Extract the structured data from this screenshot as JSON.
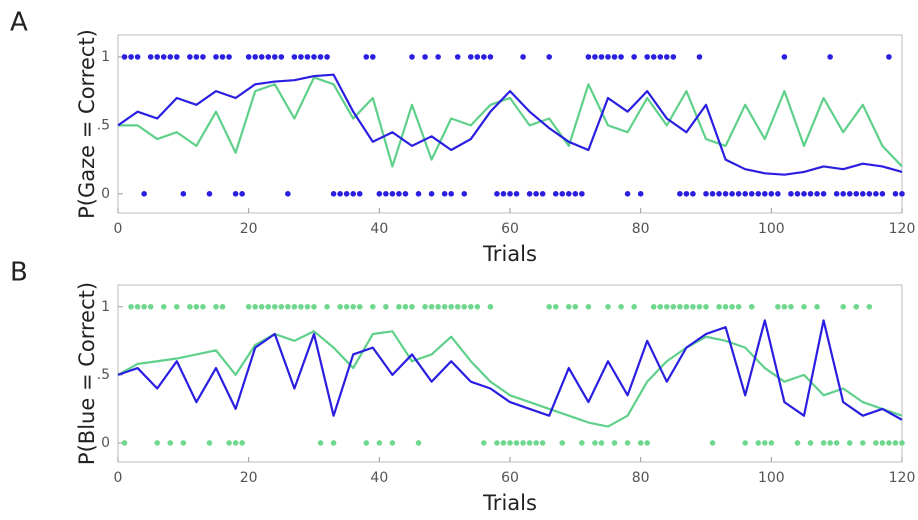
{
  "chart_data": [
    {
      "type": "line",
      "panel": "A",
      "ylabel": "P(Gaze = Correct)",
      "xlabel": "Trials",
      "xlim": [
        0,
        120
      ],
      "xticks": [
        0,
        20,
        40,
        60,
        80,
        100,
        120
      ],
      "ylim": [
        -0.14,
        1.16
      ],
      "yticks": [
        0,
        {
          "value": 0.5,
          "label": ".5"
        },
        1
      ],
      "x": [
        0,
        3,
        6,
        9,
        12,
        15,
        18,
        21,
        24,
        27,
        30,
        33,
        36,
        39,
        42,
        45,
        48,
        51,
        54,
        57,
        60,
        63,
        66,
        69,
        72,
        75,
        78,
        81,
        84,
        87,
        90,
        93,
        96,
        99,
        102,
        105,
        108,
        111,
        114,
        117,
        120
      ],
      "series": [
        {
          "color": "#5fd08a",
          "values": [
            0.5,
            0.5,
            0.4,
            0.45,
            0.35,
            0.6,
            0.3,
            0.75,
            0.8,
            0.55,
            0.85,
            0.8,
            0.55,
            0.7,
            0.2,
            0.65,
            0.25,
            0.55,
            0.5,
            0.65,
            0.7,
            0.5,
            0.55,
            0.35,
            0.8,
            0.5,
            0.45,
            0.7,
            0.5,
            0.75,
            0.4,
            0.35,
            0.65,
            0.4,
            0.75,
            0.35,
            0.7,
            0.45,
            0.65,
            0.35,
            0.2
          ]
        },
        {
          "color": "#2a1ee0",
          "values": [
            0.5,
            0.6,
            0.55,
            0.7,
            0.65,
            0.75,
            0.7,
            0.8,
            0.82,
            0.83,
            0.86,
            0.87,
            0.6,
            0.38,
            0.45,
            0.35,
            0.42,
            0.32,
            0.4,
            0.6,
            0.75,
            0.6,
            0.48,
            0.38,
            0.32,
            0.7,
            0.6,
            0.75,
            0.55,
            0.45,
            0.65,
            0.25,
            0.18,
            0.15,
            0.14,
            0.16,
            0.2,
            0.18,
            0.22,
            0.2,
            0.16
          ]
        }
      ],
      "dot_color": "#2a1ee0",
      "outcome_x": [
        1,
        2,
        3,
        4,
        5,
        6,
        7,
        8,
        9,
        10,
        11,
        12,
        13,
        14,
        15,
        16,
        17,
        18,
        19,
        20,
        21,
        22,
        23,
        24,
        25,
        26,
        27,
        28,
        29,
        30,
        31,
        32,
        33,
        34,
        35,
        36,
        37,
        38,
        39,
        40,
        41,
        42,
        43,
        44,
        45,
        46,
        47,
        48,
        49,
        50,
        51,
        52,
        53,
        54,
        55,
        56,
        57,
        58,
        59,
        60,
        61,
        62,
        63,
        64,
        65,
        66,
        67,
        68,
        69,
        70,
        71,
        72,
        73,
        74,
        75,
        76,
        77,
        78,
        79,
        80,
        81,
        82,
        83,
        84,
        85,
        86,
        87,
        88,
        89,
        90,
        91,
        92,
        93,
        94,
        95,
        96,
        97,
        98,
        99,
        100,
        101,
        102,
        103,
        104,
        105,
        106,
        107,
        108,
        109,
        110,
        111,
        112,
        113,
        114,
        115,
        116,
        117,
        118,
        119,
        120
      ],
      "outcome": [
        1,
        1,
        1,
        0,
        1,
        1,
        1,
        1,
        1,
        0,
        1,
        1,
        1,
        0,
        1,
        1,
        1,
        0,
        0,
        1,
        1,
        1,
        1,
        1,
        1,
        0,
        1,
        1,
        1,
        1,
        1,
        1,
        0,
        0,
        0,
        0,
        0,
        1,
        1,
        0,
        0,
        0,
        0,
        0,
        1,
        0,
        1,
        0,
        1,
        0,
        0,
        1,
        0,
        1,
        1,
        1,
        1,
        0,
        0,
        0,
        0,
        1,
        0,
        0,
        0,
        1,
        0,
        0,
        0,
        0,
        0,
        1,
        1,
        1,
        1,
        1,
        1,
        0,
        1,
        0,
        1,
        1,
        1,
        1,
        1,
        0,
        0,
        0,
        1,
        0,
        0,
        0,
        0,
        0,
        0,
        0,
        0,
        0,
        0,
        0,
        0,
        1,
        0,
        0,
        0,
        0,
        0,
        0,
        1,
        0,
        0,
        0,
        0,
        0,
        0,
        0,
        0,
        1,
        0,
        0
      ]
    },
    {
      "type": "line",
      "panel": "B",
      "ylabel": "P(Blue = Correct)",
      "xlabel": "Trials",
      "xlim": [
        0,
        120
      ],
      "xticks": [
        0,
        20,
        40,
        60,
        80,
        100,
        120
      ],
      "ylim": [
        -0.14,
        1.16
      ],
      "yticks": [
        0,
        {
          "value": 0.5,
          "label": ".5"
        },
        1
      ],
      "x": [
        0,
        3,
        6,
        9,
        12,
        15,
        18,
        21,
        24,
        27,
        30,
        33,
        36,
        39,
        42,
        45,
        48,
        51,
        54,
        57,
        60,
        63,
        66,
        69,
        72,
        75,
        78,
        81,
        84,
        87,
        90,
        93,
        96,
        99,
        102,
        105,
        108,
        111,
        114,
        117,
        120
      ],
      "series": [
        {
          "color": "#5fd08a",
          "values": [
            0.5,
            0.58,
            0.6,
            0.62,
            0.65,
            0.68,
            0.5,
            0.72,
            0.8,
            0.75,
            0.82,
            0.7,
            0.55,
            0.8,
            0.82,
            0.6,
            0.65,
            0.78,
            0.6,
            0.45,
            0.35,
            0.3,
            0.25,
            0.2,
            0.15,
            0.12,
            0.2,
            0.45,
            0.6,
            0.7,
            0.78,
            0.75,
            0.7,
            0.55,
            0.45,
            0.5,
            0.35,
            0.4,
            0.3,
            0.25,
            0.2
          ]
        },
        {
          "color": "#2a1ee0",
          "values": [
            0.5,
            0.55,
            0.4,
            0.6,
            0.3,
            0.55,
            0.25,
            0.7,
            0.8,
            0.4,
            0.8,
            0.2,
            0.65,
            0.7,
            0.5,
            0.65,
            0.45,
            0.6,
            0.45,
            0.4,
            0.3,
            0.25,
            0.2,
            0.55,
            0.3,
            0.6,
            0.35,
            0.75,
            0.45,
            0.7,
            0.8,
            0.85,
            0.35,
            0.9,
            0.3,
            0.2,
            0.9,
            0.3,
            0.2,
            0.25,
            0.17
          ]
        }
      ],
      "dot_color": "#6fd88e",
      "outcome_x": [
        1,
        2,
        3,
        4,
        5,
        6,
        7,
        8,
        9,
        10,
        11,
        12,
        13,
        14,
        15,
        16,
        17,
        18,
        19,
        20,
        21,
        22,
        23,
        24,
        25,
        26,
        27,
        28,
        29,
        30,
        31,
        32,
        33,
        34,
        35,
        36,
        37,
        38,
        39,
        40,
        41,
        42,
        43,
        44,
        45,
        46,
        47,
        48,
        49,
        50,
        51,
        52,
        53,
        54,
        55,
        56,
        57,
        58,
        59,
        60,
        61,
        62,
        63,
        64,
        65,
        66,
        67,
        68,
        69,
        70,
        71,
        72,
        73,
        74,
        75,
        76,
        77,
        78,
        79,
        80,
        81,
        82,
        83,
        84,
        85,
        86,
        87,
        88,
        89,
        90,
        91,
        92,
        93,
        94,
        95,
        96,
        97,
        98,
        99,
        100,
        101,
        102,
        103,
        104,
        105,
        106,
        107,
        108,
        109,
        110,
        111,
        112,
        113,
        114,
        115,
        116,
        117,
        118,
        119,
        120
      ],
      "outcome": [
        0,
        1,
        1,
        1,
        1,
        0,
        1,
        0,
        1,
        0,
        1,
        1,
        1,
        0,
        1,
        1,
        0,
        0,
        0,
        1,
        1,
        1,
        1,
        1,
        1,
        1,
        1,
        1,
        1,
        1,
        0,
        1,
        0,
        1,
        1,
        1,
        1,
        0,
        1,
        0,
        1,
        0,
        1,
        1,
        1,
        0,
        1,
        1,
        1,
        1,
        1,
        1,
        1,
        1,
        1,
        0,
        1,
        0,
        0,
        0,
        0,
        0,
        0,
        0,
        0,
        1,
        1,
        0,
        1,
        1,
        0,
        1,
        0,
        0,
        1,
        0,
        1,
        0,
        1,
        0,
        0,
        1,
        1,
        1,
        1,
        1,
        1,
        1,
        1,
        1,
        0,
        1,
        1,
        1,
        1,
        0,
        1,
        0,
        0,
        0,
        1,
        1,
        1,
        0,
        1,
        0,
        1,
        0,
        0,
        0,
        1,
        0,
        1,
        0,
        1,
        0,
        0,
        0,
        0,
        0
      ]
    }
  ]
}
